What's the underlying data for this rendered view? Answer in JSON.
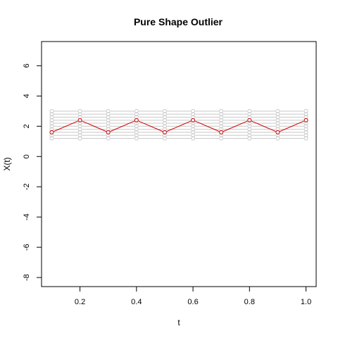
{
  "chart_data": {
    "type": "line",
    "title": "Pure Shape Outlier",
    "xlabel": "t",
    "ylabel": "X(t)",
    "xlim": [
      0.1,
      1.0
    ],
    "ylim": [
      -8,
      7
    ],
    "xticks": [
      0.2,
      0.4,
      0.6,
      0.8,
      1.0
    ],
    "xtick_labels": [
      "0.2",
      "0.4",
      "0.6",
      "0.8",
      "1.0"
    ],
    "yticks": [
      -8,
      -6,
      -4,
      -2,
      0,
      2,
      4,
      6
    ],
    "ytick_labels": [
      "-8",
      "-6",
      "-4",
      "-2",
      "0",
      "2",
      "4",
      "6"
    ],
    "grid": false,
    "x": [
      0.1,
      0.2,
      0.3,
      0.4,
      0.5,
      0.6,
      0.7,
      0.8,
      0.9,
      1.0
    ],
    "series": [
      {
        "values": [
          1.2,
          1.2,
          1.2,
          1.2,
          1.2,
          1.2,
          1.2,
          1.2,
          1.2,
          1.2
        ],
        "color": "#c8c8c8"
      },
      {
        "values": [
          1.4,
          1.4,
          1.4,
          1.4,
          1.4,
          1.4,
          1.4,
          1.4,
          1.4,
          1.4
        ],
        "color": "#c8c8c8"
      },
      {
        "values": [
          1.6,
          1.6,
          1.6,
          1.6,
          1.6,
          1.6,
          1.6,
          1.6,
          1.6,
          1.6
        ],
        "color": "#c8c8c8"
      },
      {
        "values": [
          1.8,
          1.8,
          1.8,
          1.8,
          1.8,
          1.8,
          1.8,
          1.8,
          1.8,
          1.8
        ],
        "color": "#c8c8c8"
      },
      {
        "values": [
          2.0,
          2.0,
          2.0,
          2.0,
          2.0,
          2.0,
          2.0,
          2.0,
          2.0,
          2.0
        ],
        "color": "#c8c8c8"
      },
      {
        "values": [
          2.2,
          2.2,
          2.2,
          2.2,
          2.2,
          2.2,
          2.2,
          2.2,
          2.2,
          2.2
        ],
        "color": "#c8c8c8"
      },
      {
        "values": [
          2.4,
          2.4,
          2.4,
          2.4,
          2.4,
          2.4,
          2.4,
          2.4,
          2.4,
          2.4
        ],
        "color": "#c8c8c8"
      },
      {
        "values": [
          2.6,
          2.6,
          2.6,
          2.6,
          2.6,
          2.6,
          2.6,
          2.6,
          2.6,
          2.6
        ],
        "color": "#c8c8c8"
      },
      {
        "values": [
          2.8,
          2.8,
          2.8,
          2.8,
          2.8,
          2.8,
          2.8,
          2.8,
          2.8,
          2.8
        ],
        "color": "#c8c8c8"
      },
      {
        "values": [
          3.0,
          3.0,
          3.0,
          3.0,
          3.0,
          3.0,
          3.0,
          3.0,
          3.0,
          3.0
        ],
        "color": "#c8c8c8"
      },
      {
        "values": [
          1.6,
          2.4,
          1.6,
          2.4,
          1.6,
          2.4,
          1.6,
          2.4,
          1.6,
          2.4
        ],
        "color": "#cc0000",
        "outlier": true
      }
    ]
  }
}
